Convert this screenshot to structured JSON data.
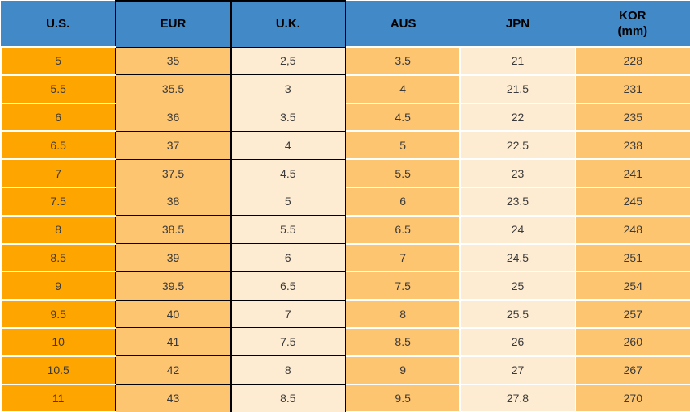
{
  "chart_data": {
    "type": "table",
    "columns": [
      {
        "key": "us",
        "label": "U.S."
      },
      {
        "key": "eur",
        "label": "EUR"
      },
      {
        "key": "uk",
        "label": "U.K."
      },
      {
        "key": "aus",
        "label": "AUS"
      },
      {
        "key": "jpn",
        "label": "JPN"
      },
      {
        "key": "kor",
        "label": "KOR",
        "sublabel": "(mm)"
      }
    ],
    "rows": [
      [
        "5",
        "35",
        "2,5",
        "3.5",
        "21",
        "228"
      ],
      [
        "5.5",
        "35.5",
        "3",
        "4",
        "21.5",
        "231"
      ],
      [
        "6",
        "36",
        "3.5",
        "4.5",
        "22",
        "235"
      ],
      [
        "6.5",
        "37",
        "4",
        "5",
        "22.5",
        "238"
      ],
      [
        "7",
        "37.5",
        "4.5",
        "5.5",
        "23",
        "241"
      ],
      [
        "7.5",
        "38",
        "5",
        "6",
        "23.5",
        "245"
      ],
      [
        "8",
        "38.5",
        "5.5",
        "6.5",
        "24",
        "248"
      ],
      [
        "8.5",
        "39",
        "6",
        "7",
        "24.5",
        "251"
      ],
      [
        "9",
        "39.5",
        "6.5",
        "7.5",
        "25",
        "254"
      ],
      [
        "9.5",
        "40",
        "7",
        "8",
        "25.5",
        "257"
      ],
      [
        "10",
        "41",
        "7.5",
        "8.5",
        "26",
        "260"
      ],
      [
        "10.5",
        "42",
        "8",
        "9",
        "27",
        "267"
      ],
      [
        "11",
        "43",
        "8.5",
        "9.5",
        "27.8",
        "270"
      ]
    ]
  },
  "colors": {
    "header_bg": "#4289C7",
    "header_text": "#000000",
    "us_bg": "#FFA500",
    "light_orange_bg": "#FEC570",
    "cream_bg": "#FDEBD2",
    "body_text": "#3A3A3A",
    "black_border": "#000000",
    "white_sep": "#FFFFFF"
  }
}
